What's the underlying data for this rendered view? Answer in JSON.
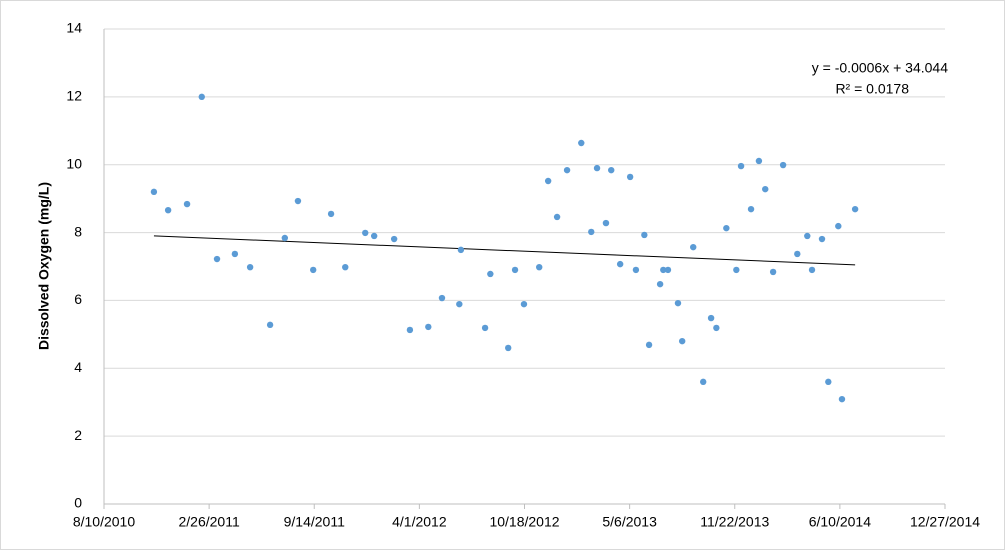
{
  "chart_data": {
    "type": "scatter",
    "y_label": "Dissolved Oxygen (mg/L)",
    "trendline": {
      "equation": "y = -0.0006x + 34.044",
      "r_squared": "R² = 0.0178",
      "color": "#000000"
    },
    "series": [
      {
        "color": "#5b9bd5",
        "x": [
          "11/13/2010",
          "12/10/2010",
          "1/15/2011",
          "2/12/2011",
          "3/13/2011",
          "4/16/2011",
          "5/15/2011",
          "6/22/2011",
          "7/20/2011",
          "8/14/2011",
          "9/12/2011",
          "10/16/2011",
          "11/12/2011",
          "12/20/2011",
          "1/6/2012",
          "2/13/2012",
          "3/14/2012",
          "4/18/2012",
          "5/14/2012",
          "6/16/2012",
          "6/19/2012",
          "8/4/2012",
          "8/14/2012",
          "9/17/2012",
          "9/30/2012",
          "10/17/2012",
          "11/15/2012",
          "12/2/2012",
          "12/19/2012",
          "1/7/2013",
          "2/3/2013",
          "2/22/2013",
          "3/5/2013",
          "3/22/2013",
          "4/1/2013",
          "4/18/2013",
          "5/7/2013",
          "5/18/2013",
          "6/3/2013",
          "6/12/2013",
          "7/3/2013",
          "7/9/2013",
          "7/18/2013",
          "8/6/2013",
          "8/14/2013",
          "9/4/2013",
          "9/23/2013",
          "10/8/2013",
          "10/18/2013",
          "11/6/2013",
          "11/25/2013",
          "12/4/2013",
          "12/23/2013",
          "1/7/2014",
          "1/19/2014",
          "2/3/2014",
          "2/22/2014",
          "3/21/2014",
          "4/9/2014",
          "4/18/2014",
          "5/7/2014",
          "5/19/2014",
          "6/7/2014",
          "6/14/2014",
          "7/9/2014"
        ],
        "values": [
          9.2,
          8.66,
          8.84,
          12.0,
          7.22,
          7.37,
          6.98,
          5.28,
          7.84,
          8.93,
          6.9,
          8.55,
          6.98,
          7.99,
          7.9,
          7.81,
          5.13,
          5.22,
          6.07,
          5.89,
          7.49,
          5.19,
          6.78,
          4.6,
          6.9,
          5.89,
          6.98,
          9.52,
          8.46,
          9.84,
          10.64,
          8.02,
          9.9,
          8.28,
          9.84,
          7.07,
          9.64,
          6.9,
          7.93,
          4.69,
          6.48,
          6.9,
          6.9,
          5.92,
          4.8,
          7.57,
          3.6,
          5.48,
          5.19,
          8.13,
          6.9,
          9.96,
          8.69,
          10.11,
          9.28,
          6.84,
          9.99,
          7.37,
          7.9,
          6.9,
          7.81,
          3.6,
          8.19,
          3.09,
          8.69
        ]
      }
    ],
    "xlim": [
      "8/10/2010",
      "12/27/2014"
    ],
    "xticks": [
      "8/10/2010",
      "2/26/2011",
      "9/14/2011",
      "4/1/2012",
      "10/18/2012",
      "5/6/2013",
      "11/22/2013",
      "6/10/2014",
      "12/27/2014"
    ],
    "ylim": [
      0,
      14
    ],
    "yticks": [
      0,
      2,
      4,
      6,
      8,
      10,
      12,
      14
    ],
    "grid": true
  }
}
